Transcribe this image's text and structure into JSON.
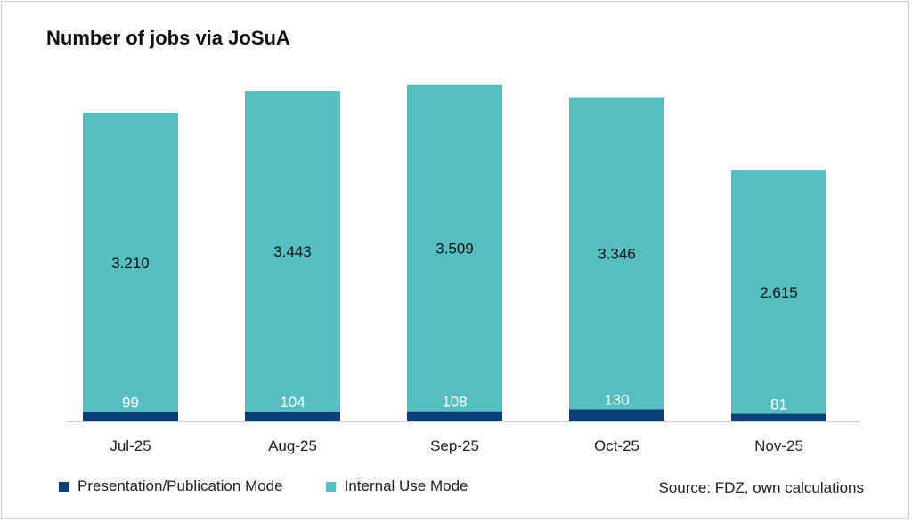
{
  "chart_data": {
    "type": "bar",
    "stacked": true,
    "title": "Number of jobs via JoSuA",
    "categories": [
      "Jul-25",
      "Aug-25",
      "Sep-25",
      "Oct-25",
      "Nov-25"
    ],
    "series": [
      {
        "name": "Presentation/Publication Mode",
        "values": [
          99,
          104,
          108,
          130,
          81
        ],
        "labels": [
          "99",
          "104",
          "108",
          "130",
          "81"
        ],
        "color": "#0B3F7A"
      },
      {
        "name": "Internal Use Mode",
        "values": [
          3210,
          3443,
          3509,
          3346,
          2615
        ],
        "labels": [
          "3.210",
          "3.443",
          "3.509",
          "3.346",
          "2.615"
        ],
        "color": "#56BEC1"
      }
    ],
    "xlabel": "",
    "ylabel": "",
    "ylim": [
      0,
      3700
    ],
    "grid": false,
    "legend": "bottom-left"
  },
  "source": "Source: FDZ, own calculations"
}
